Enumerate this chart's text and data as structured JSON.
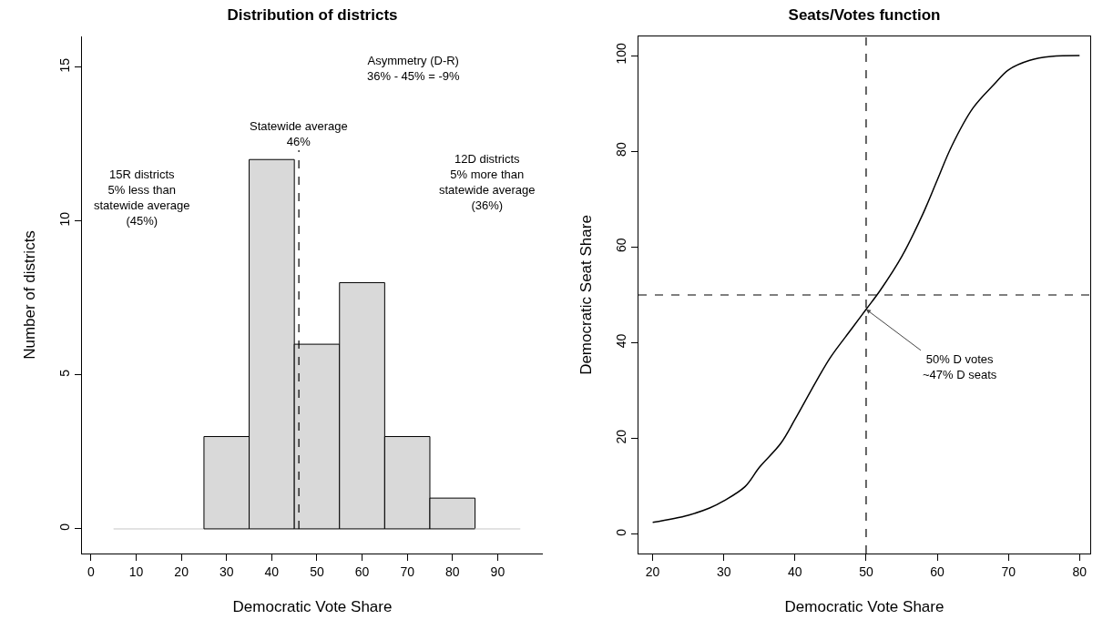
{
  "chart_data": [
    {
      "type": "histogram",
      "title": "Distribution of districts",
      "xlabel": "Democratic Vote Share",
      "ylabel": "Number of districts",
      "bins": [
        5,
        15,
        25,
        35,
        45,
        55,
        65,
        75,
        85,
        95
      ],
      "values": [
        0,
        0,
        3,
        12,
        6,
        8,
        3,
        1,
        0
      ],
      "color": "#d9d9d9",
      "xlim": [
        -2,
        100
      ],
      "xticks": [
        0,
        10,
        20,
        30,
        40,
        50,
        60,
        70,
        80,
        90
      ],
      "ylim": [
        -0.8,
        16
      ],
      "yticks": [
        0,
        5,
        10,
        15
      ],
      "grid": false,
      "ref_lines": [
        {
          "axis": "x",
          "value": 46,
          "label": "Statewide average\n46%",
          "line_style": "dashed"
        }
      ],
      "annotations": [
        "Asymmetry (D-R)\n36% - 45% = -9%",
        "15R districts\n5% less than\nstatewide average\n(45%)",
        "12D districts\n5% more than\nstatewide average\n(36%)"
      ]
    },
    {
      "type": "line",
      "title": "Seats/Votes function",
      "xlabel": "Democratic Vote Share",
      "ylabel": "Democratic Seat Share",
      "x": [
        20,
        25,
        28,
        30,
        33,
        35,
        38,
        40,
        43,
        45,
        48,
        50,
        52,
        55,
        58,
        60,
        62,
        65,
        68,
        70,
        73,
        76,
        80
      ],
      "values": [
        2.5,
        4,
        5.5,
        7,
        10,
        14,
        19,
        24,
        32,
        37,
        43,
        47,
        51,
        58,
        67,
        74,
        81,
        89,
        94,
        97,
        99,
        99.8,
        100
      ],
      "color": "#000000",
      "xlim": [
        18,
        81.5
      ],
      "xticks": [
        20,
        30,
        40,
        50,
        60,
        70,
        80
      ],
      "ylim": [
        -4,
        104
      ],
      "yticks": [
        0,
        20,
        40,
        60,
        80,
        100
      ],
      "grid": false,
      "ref_lines": [
        {
          "axis": "x",
          "value": 50,
          "line_style": "dashed"
        },
        {
          "axis": "y",
          "value": 50,
          "line_style": "dashed"
        }
      ],
      "annotations": [
        {
          "text": "50% D votes\n~47% D seats",
          "x": 50,
          "y": 47
        }
      ]
    }
  ]
}
